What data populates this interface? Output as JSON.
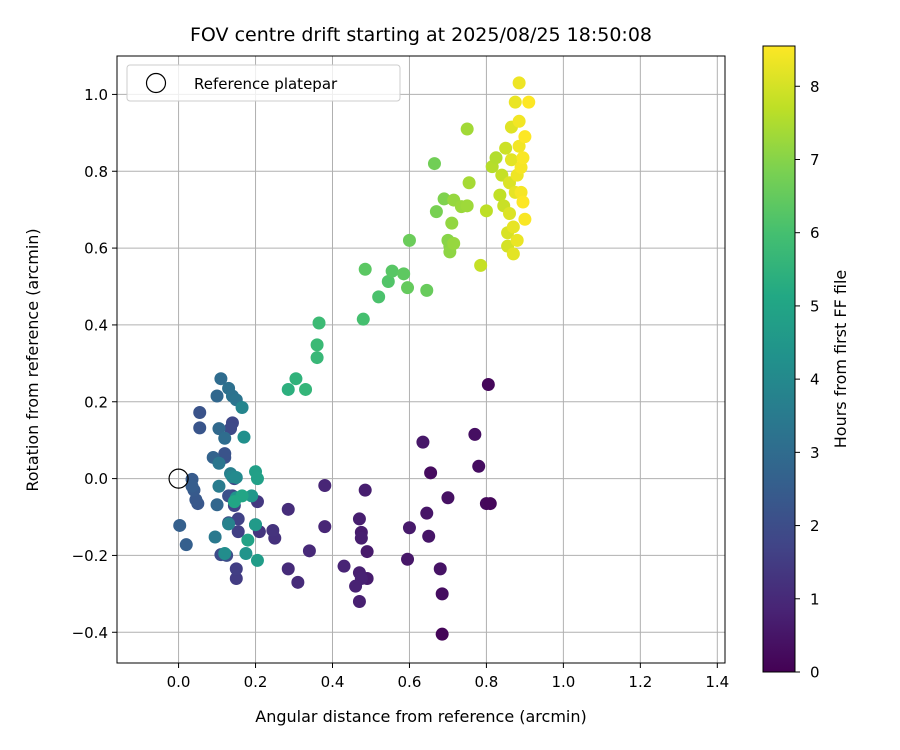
{
  "chart_data": {
    "type": "scatter",
    "title": "FOV centre drift starting at 2025/08/25 18:50:08",
    "xlabel": "Angular distance from reference (arcmin)",
    "ylabel": "Rotation from reference (arcmin)",
    "xlim": [
      -0.16,
      1.42
    ],
    "ylim": [
      -0.48,
      1.1
    ],
    "x_ticks": [
      "0.0",
      "0.2",
      "0.4",
      "0.6",
      "0.8",
      "1.0",
      "1.2",
      "1.4"
    ],
    "x_tick_values": [
      0,
      0.2,
      0.4,
      0.6,
      0.8,
      1.0,
      1.2,
      1.4
    ],
    "y_ticks": [
      "−0.4",
      "−0.2",
      "0.0",
      "0.2",
      "0.4",
      "0.6",
      "0.8",
      "1.0"
    ],
    "y_tick_values": [
      -0.4,
      -0.2,
      0,
      0.2,
      0.4,
      0.6,
      0.8,
      1.0
    ],
    "grid": true,
    "legend": {
      "position": "top-left",
      "entries": [
        "Reference platepar"
      ]
    },
    "reference_point": {
      "x": 0,
      "y": 0
    },
    "colorbar": {
      "label": "Hours from first FF file",
      "colormap": "viridis",
      "min": 0,
      "max": 8.55,
      "ticks": [
        "0",
        "1",
        "2",
        "3",
        "4",
        "5",
        "6",
        "7",
        "8"
      ],
      "tick_values": [
        0,
        1,
        2,
        3,
        4,
        5,
        6,
        7,
        8
      ]
    },
    "points": [
      {
        "x": 0.685,
        "y": -0.405,
        "h": 0.1
      },
      {
        "x": 0.805,
        "y": 0.245,
        "h": 0.15
      },
      {
        "x": 0.685,
        "y": -0.3,
        "h": 0.3
      },
      {
        "x": 0.655,
        "y": 0.015,
        "h": 0.25
      },
      {
        "x": 0.8,
        "y": -0.065,
        "h": 0.2
      },
      {
        "x": 0.81,
        "y": -0.065,
        "h": 0.15
      },
      {
        "x": 0.78,
        "y": 0.032,
        "h": 0.3
      },
      {
        "x": 0.77,
        "y": 0.115,
        "h": 0.35
      },
      {
        "x": 0.7,
        "y": -0.05,
        "h": 0.4
      },
      {
        "x": 0.68,
        "y": -0.235,
        "h": 0.45
      },
      {
        "x": 0.65,
        "y": -0.15,
        "h": 0.5
      },
      {
        "x": 0.645,
        "y": -0.09,
        "h": 0.5
      },
      {
        "x": 0.635,
        "y": 0.095,
        "h": 0.55
      },
      {
        "x": 0.6,
        "y": -0.128,
        "h": 0.6
      },
      {
        "x": 0.595,
        "y": -0.21,
        "h": 0.55
      },
      {
        "x": 0.49,
        "y": -0.19,
        "h": 0.6
      },
      {
        "x": 0.49,
        "y": -0.26,
        "h": 0.65
      },
      {
        "x": 0.485,
        "y": -0.03,
        "h": 0.7
      },
      {
        "x": 0.475,
        "y": -0.14,
        "h": 0.65
      },
      {
        "x": 0.475,
        "y": -0.155,
        "h": 0.7
      },
      {
        "x": 0.47,
        "y": -0.105,
        "h": 0.7
      },
      {
        "x": 0.47,
        "y": -0.245,
        "h": 0.75
      },
      {
        "x": 0.47,
        "y": -0.32,
        "h": 0.75
      },
      {
        "x": 0.475,
        "y": -0.26,
        "h": 0.8
      },
      {
        "x": 0.46,
        "y": -0.28,
        "h": 0.8
      },
      {
        "x": 0.43,
        "y": -0.228,
        "h": 0.85
      },
      {
        "x": 0.38,
        "y": -0.018,
        "h": 0.9
      },
      {
        "x": 0.38,
        "y": -0.125,
        "h": 0.9
      },
      {
        "x": 0.34,
        "y": -0.188,
        "h": 1.0
      },
      {
        "x": 0.31,
        "y": -0.27,
        "h": 1.05
      },
      {
        "x": 0.285,
        "y": -0.235,
        "h": 1.05
      },
      {
        "x": 0.285,
        "y": -0.08,
        "h": 1.1
      },
      {
        "x": 0.25,
        "y": -0.155,
        "h": 1.2
      },
      {
        "x": 0.245,
        "y": -0.135,
        "h": 1.25
      },
      {
        "x": 0.21,
        "y": -0.138,
        "h": 1.3
      },
      {
        "x": 0.2,
        "y": -0.12,
        "h": 1.35
      },
      {
        "x": 0.205,
        "y": -0.06,
        "h": 1.4
      },
      {
        "x": 0.15,
        "y": -0.26,
        "h": 1.5
      },
      {
        "x": 0.15,
        "y": -0.235,
        "h": 1.55
      },
      {
        "x": 0.155,
        "y": -0.138,
        "h": 1.6
      },
      {
        "x": 0.155,
        "y": -0.105,
        "h": 1.65
      },
      {
        "x": 0.145,
        "y": -0.07,
        "h": 1.7
      },
      {
        "x": 0.14,
        "y": -0.045,
        "h": 1.75
      },
      {
        "x": 0.145,
        "y": 0.0,
        "h": 1.8
      },
      {
        "x": 0.14,
        "y": 0.145,
        "h": 1.85
      },
      {
        "x": 0.135,
        "y": 0.13,
        "h": 1.9
      },
      {
        "x": 0.11,
        "y": -0.198,
        "h": 1.95
      },
      {
        "x": 0.125,
        "y": -0.2,
        "h": 2.0
      },
      {
        "x": 0.13,
        "y": -0.115,
        "h": 2.05
      },
      {
        "x": 0.13,
        "y": -0.045,
        "h": 2.1
      },
      {
        "x": 0.12,
        "y": 0.055,
        "h": 2.15
      },
      {
        "x": 0.12,
        "y": 0.065,
        "h": 2.2
      },
      {
        "x": 0.055,
        "y": 0.172,
        "h": 2.2
      },
      {
        "x": 0.055,
        "y": 0.132,
        "h": 2.25
      },
      {
        "x": 0.05,
        "y": -0.065,
        "h": 2.3
      },
      {
        "x": 0.045,
        "y": -0.055,
        "h": 2.35
      },
      {
        "x": 0.04,
        "y": -0.03,
        "h": 2.4
      },
      {
        "x": 0.035,
        "y": -0.002,
        "h": 2.45
      },
      {
        "x": 0.035,
        "y": -0.02,
        "h": 2.5
      },
      {
        "x": 0.02,
        "y": -0.172,
        "h": 2.55
      },
      {
        "x": 0.003,
        "y": -0.122,
        "h": 2.6
      },
      {
        "x": 0.09,
        "y": 0.055,
        "h": 2.7
      },
      {
        "x": 0.1,
        "y": -0.068,
        "h": 2.8
      },
      {
        "x": 0.1,
        "y": 0.215,
        "h": 2.85
      },
      {
        "x": 0.105,
        "y": 0.13,
        "h": 2.9
      },
      {
        "x": 0.11,
        "y": 0.26,
        "h": 3.0
      },
      {
        "x": 0.12,
        "y": 0.105,
        "h": 3.05
      },
      {
        "x": 0.13,
        "y": 0.235,
        "h": 3.15
      },
      {
        "x": 0.14,
        "y": 0.215,
        "h": 3.2
      },
      {
        "x": 0.15,
        "y": 0.205,
        "h": 3.3
      },
      {
        "x": 0.105,
        "y": 0.04,
        "h": 3.35
      },
      {
        "x": 0.095,
        "y": -0.152,
        "h": 3.45
      },
      {
        "x": 0.105,
        "y": -0.02,
        "h": 3.55
      },
      {
        "x": 0.135,
        "y": 0.013,
        "h": 3.65
      },
      {
        "x": 0.13,
        "y": -0.118,
        "h": 3.75
      },
      {
        "x": 0.165,
        "y": 0.185,
        "h": 3.85
      },
      {
        "x": 0.14,
        "y": 0.005,
        "h": 3.95
      },
      {
        "x": 0.15,
        "y": 0.003,
        "h": 4.05
      },
      {
        "x": 0.12,
        "y": -0.195,
        "h": 4.15
      },
      {
        "x": 0.17,
        "y": 0.108,
        "h": 4.25
      },
      {
        "x": 0.15,
        "y": -0.05,
        "h": 4.3
      },
      {
        "x": 0.175,
        "y": -0.195,
        "h": 4.4
      },
      {
        "x": 0.19,
        "y": -0.045,
        "h": 4.5
      },
      {
        "x": 0.2,
        "y": -0.12,
        "h": 4.6
      },
      {
        "x": 0.205,
        "y": -0.213,
        "h": 4.7
      },
      {
        "x": 0.2,
        "y": 0.018,
        "h": 4.8
      },
      {
        "x": 0.205,
        "y": 0.0,
        "h": 4.85
      },
      {
        "x": 0.18,
        "y": -0.16,
        "h": 4.9
      },
      {
        "x": 0.165,
        "y": -0.045,
        "h": 5.0
      },
      {
        "x": 0.145,
        "y": -0.06,
        "h": 5.05
      },
      {
        "x": 0.285,
        "y": 0.232,
        "h": 5.4
      },
      {
        "x": 0.305,
        "y": 0.26,
        "h": 5.5
      },
      {
        "x": 0.33,
        "y": 0.232,
        "h": 5.6
      },
      {
        "x": 0.36,
        "y": 0.315,
        "h": 5.7
      },
      {
        "x": 0.36,
        "y": 0.348,
        "h": 5.75
      },
      {
        "x": 0.365,
        "y": 0.405,
        "h": 5.8
      },
      {
        "x": 0.48,
        "y": 0.415,
        "h": 6.0
      },
      {
        "x": 0.52,
        "y": 0.473,
        "h": 6.1
      },
      {
        "x": 0.545,
        "y": 0.513,
        "h": 6.2
      },
      {
        "x": 0.555,
        "y": 0.54,
        "h": 6.3
      },
      {
        "x": 0.485,
        "y": 0.545,
        "h": 6.35
      },
      {
        "x": 0.585,
        "y": 0.533,
        "h": 6.4
      },
      {
        "x": 0.595,
        "y": 0.497,
        "h": 6.5
      },
      {
        "x": 0.645,
        "y": 0.49,
        "h": 6.55
      },
      {
        "x": 0.6,
        "y": 0.62,
        "h": 6.6
      },
      {
        "x": 0.665,
        "y": 0.82,
        "h": 6.7
      },
      {
        "x": 0.67,
        "y": 0.695,
        "h": 6.8
      },
      {
        "x": 0.69,
        "y": 0.728,
        "h": 6.9
      },
      {
        "x": 0.7,
        "y": 0.62,
        "h": 7.0
      },
      {
        "x": 0.705,
        "y": 0.605,
        "h": 7.05
      },
      {
        "x": 0.705,
        "y": 0.59,
        "h": 7.1
      },
      {
        "x": 0.71,
        "y": 0.665,
        "h": 7.15
      },
      {
        "x": 0.715,
        "y": 0.725,
        "h": 7.2
      },
      {
        "x": 0.715,
        "y": 0.612,
        "h": 7.2
      },
      {
        "x": 0.735,
        "y": 0.708,
        "h": 7.25
      },
      {
        "x": 0.75,
        "y": 0.71,
        "h": 7.3
      },
      {
        "x": 0.75,
        "y": 0.91,
        "h": 7.35
      },
      {
        "x": 0.755,
        "y": 0.77,
        "h": 7.4
      },
      {
        "x": 0.785,
        "y": 0.555,
        "h": 7.8
      },
      {
        "x": 0.8,
        "y": 0.697,
        "h": 7.7
      },
      {
        "x": 0.815,
        "y": 0.812,
        "h": 7.6
      },
      {
        "x": 0.825,
        "y": 0.835,
        "h": 7.55
      },
      {
        "x": 0.835,
        "y": 0.738,
        "h": 7.75
      },
      {
        "x": 0.84,
        "y": 0.79,
        "h": 7.8
      },
      {
        "x": 0.845,
        "y": 0.71,
        "h": 7.85
      },
      {
        "x": 0.85,
        "y": 0.86,
        "h": 7.9
      },
      {
        "x": 0.855,
        "y": 0.605,
        "h": 8.0
      },
      {
        "x": 0.855,
        "y": 0.64,
        "h": 8.05
      },
      {
        "x": 0.86,
        "y": 0.77,
        "h": 8.1
      },
      {
        "x": 0.86,
        "y": 0.69,
        "h": 8.1
      },
      {
        "x": 0.865,
        "y": 0.915,
        "h": 8.15
      },
      {
        "x": 0.865,
        "y": 0.83,
        "h": 8.2
      },
      {
        "x": 0.87,
        "y": 0.585,
        "h": 8.2
      },
      {
        "x": 0.87,
        "y": 0.655,
        "h": 8.25
      },
      {
        "x": 0.875,
        "y": 0.745,
        "h": 8.25
      },
      {
        "x": 0.875,
        "y": 0.98,
        "h": 8.3
      },
      {
        "x": 0.88,
        "y": 0.62,
        "h": 8.3
      },
      {
        "x": 0.88,
        "y": 0.79,
        "h": 8.35
      },
      {
        "x": 0.885,
        "y": 1.03,
        "h": 8.35
      },
      {
        "x": 0.885,
        "y": 0.93,
        "h": 8.4
      },
      {
        "x": 0.885,
        "y": 0.865,
        "h": 8.4
      },
      {
        "x": 0.89,
        "y": 0.81,
        "h": 8.45
      },
      {
        "x": 0.89,
        "y": 0.745,
        "h": 8.45
      },
      {
        "x": 0.895,
        "y": 0.835,
        "h": 8.5
      },
      {
        "x": 0.9,
        "y": 0.675,
        "h": 8.5
      },
      {
        "x": 0.9,
        "y": 0.89,
        "h": 8.55
      },
      {
        "x": 0.895,
        "y": 0.72,
        "h": 8.55
      },
      {
        "x": 0.91,
        "y": 0.98,
        "h": 8.55
      }
    ]
  }
}
